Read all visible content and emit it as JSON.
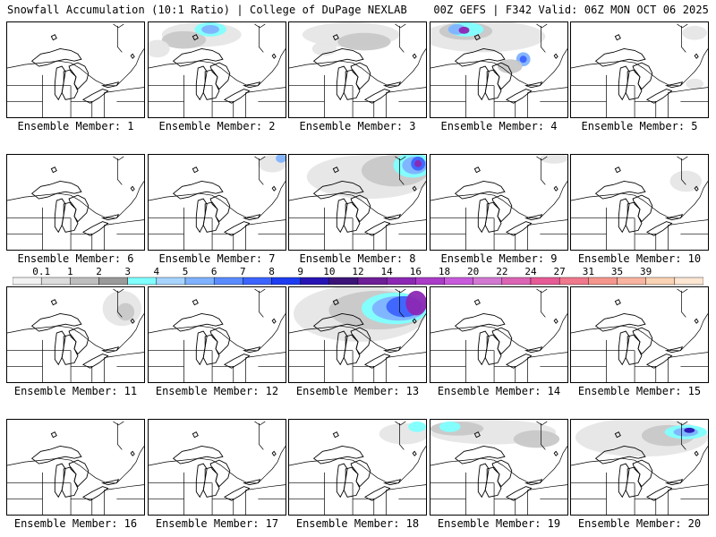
{
  "header": {
    "title_left": "Snowfall Accumulation (10:1 Ratio) | College of DuPage NEXLAB",
    "title_right": "00Z GEFS | F342 Valid: 06Z MON OCT 06 2025"
  },
  "panels": [
    {
      "label": "Ensemble Member: 1"
    },
    {
      "label": "Ensemble Member: 2"
    },
    {
      "label": "Ensemble Member: 3"
    },
    {
      "label": "Ensemble Member: 4"
    },
    {
      "label": "Ensemble Member: 5"
    },
    {
      "label": "Ensemble Member: 6"
    },
    {
      "label": "Ensemble Member: 7"
    },
    {
      "label": "Ensemble Member: 8"
    },
    {
      "label": "Ensemble Member: 9"
    },
    {
      "label": "Ensemble Member: 10"
    },
    {
      "label": "Ensemble Member: 11"
    },
    {
      "label": "Ensemble Member: 12"
    },
    {
      "label": "Ensemble Member: 13"
    },
    {
      "label": "Ensemble Member: 14"
    },
    {
      "label": "Ensemble Member: 15"
    },
    {
      "label": "Ensemble Member: 16"
    },
    {
      "label": "Ensemble Member: 17"
    },
    {
      "label": "Ensemble Member: 18"
    },
    {
      "label": "Ensemble Member: 19"
    },
    {
      "label": "Ensemble Member: 20"
    }
  ],
  "colorbar": {
    "labels": [
      "0.1",
      "1",
      "2",
      "3",
      "4",
      "5",
      "6",
      "7",
      "8",
      "9",
      "10",
      "12",
      "14",
      "16",
      "18",
      "20",
      "22",
      "24",
      "27",
      "31",
      "35",
      "39"
    ],
    "colors": [
      "#f2f2f2",
      "#dcdcdc",
      "#bebebe",
      "#9a9a9a",
      "#80ffff",
      "#a6d4ff",
      "#7fb2ff",
      "#5a8cff",
      "#3c64ff",
      "#1e3cf0",
      "#2814b4",
      "#3c1478",
      "#6e1e96",
      "#8c28b4",
      "#aa3cc8",
      "#c85adc",
      "#d278d2",
      "#dc64b4",
      "#e65a96",
      "#f0788c",
      "#f5968c",
      "#f8b4a0",
      "#fad2b4",
      "#fde6d2"
    ]
  }
}
